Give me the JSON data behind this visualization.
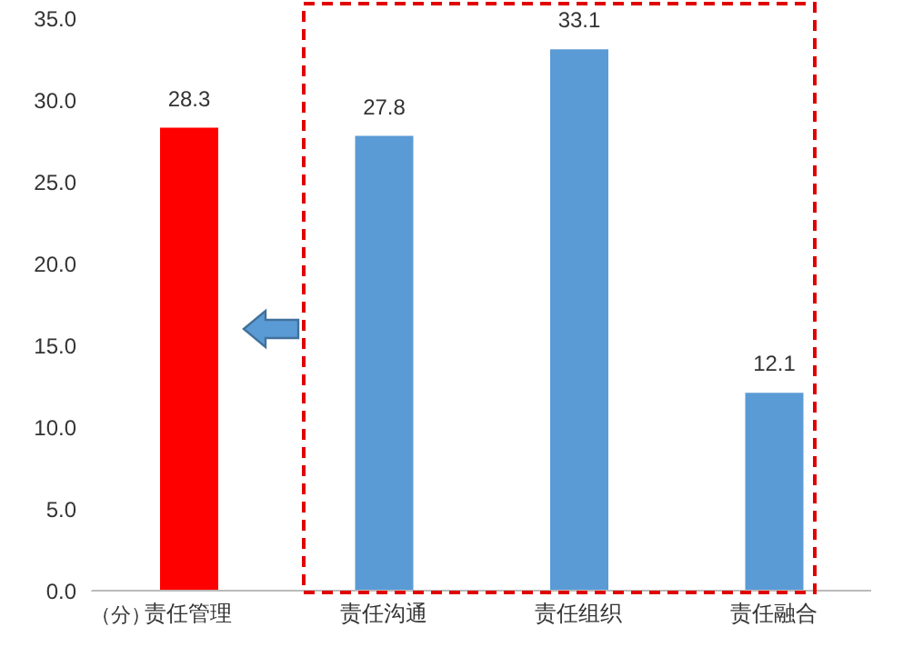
{
  "chart_data": {
    "type": "bar",
    "annotations": [
      "（分）"
    ],
    "categories": [
      "责任管理",
      "责任沟通",
      "责任组织",
      "责任融合"
    ],
    "values": [
      28.3,
      27.8,
      33.1,
      12.1
    ],
    "colors": [
      "#ff0000",
      "#5b9bd5",
      "#5b9bd5",
      "#5b9bd5"
    ],
    "ylim": [
      0,
      35
    ],
    "yticks": [
      {
        "value": 0,
        "label": "0.0"
      },
      {
        "value": 5,
        "label": "5.0"
      },
      {
        "value": 10,
        "label": "10.0"
      },
      {
        "value": 15,
        "label": "15.0"
      },
      {
        "value": 20,
        "label": "20.0"
      },
      {
        "value": 25,
        "label": "25.0"
      },
      {
        "value": 30,
        "label": "30.0"
      },
      {
        "value": 35,
        "label": "35.0"
      }
    ],
    "grid": false,
    "data_labels": true
  }
}
